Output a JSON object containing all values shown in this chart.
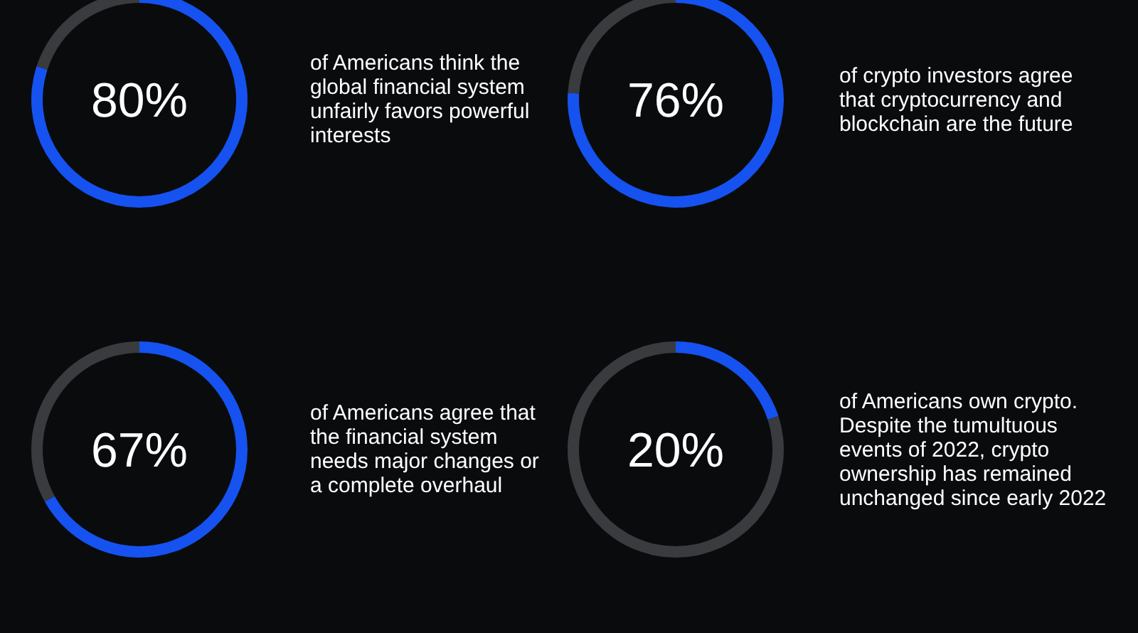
{
  "chart_data": [
    {
      "type": "donut",
      "categories": [
        null,
        null
      ],
      "values": [
        80,
        20
      ],
      "colors": [
        "#1652f0",
        "#3a3b3f"
      ],
      "value_labels": [
        "80%",
        null
      ],
      "annotations": [
        "of Americans think the global financial system unfairly favors powerful interests"
      ]
    },
    {
      "type": "donut",
      "categories": [
        null,
        null
      ],
      "values": [
        76,
        24
      ],
      "colors": [
        "#1652f0",
        "#3a3b3f"
      ],
      "value_labels": [
        "76%",
        null
      ],
      "annotations": [
        "of crypto investors agree that cryptocurrency and blockchain are the future"
      ]
    },
    {
      "type": "donut",
      "categories": [
        null,
        null
      ],
      "values": [
        67,
        33
      ],
      "colors": [
        "#1652f0",
        "#3a3b3f"
      ],
      "value_labels": [
        "67%",
        null
      ],
      "annotations": [
        "of Americans agree that the financial system needs major changes or a complete overhaul"
      ]
    },
    {
      "type": "donut",
      "categories": [
        null,
        null
      ],
      "values": [
        20,
        80
      ],
      "colors": [
        "#1652f0",
        "#3a3b3f"
      ],
      "value_labels": [
        "20%",
        null
      ],
      "annotations": [
        "of Americans own crypto. Despite the tumultuous events of 2022, crypto ownership has remained unchanged since early 2022"
      ]
    }
  ]
}
